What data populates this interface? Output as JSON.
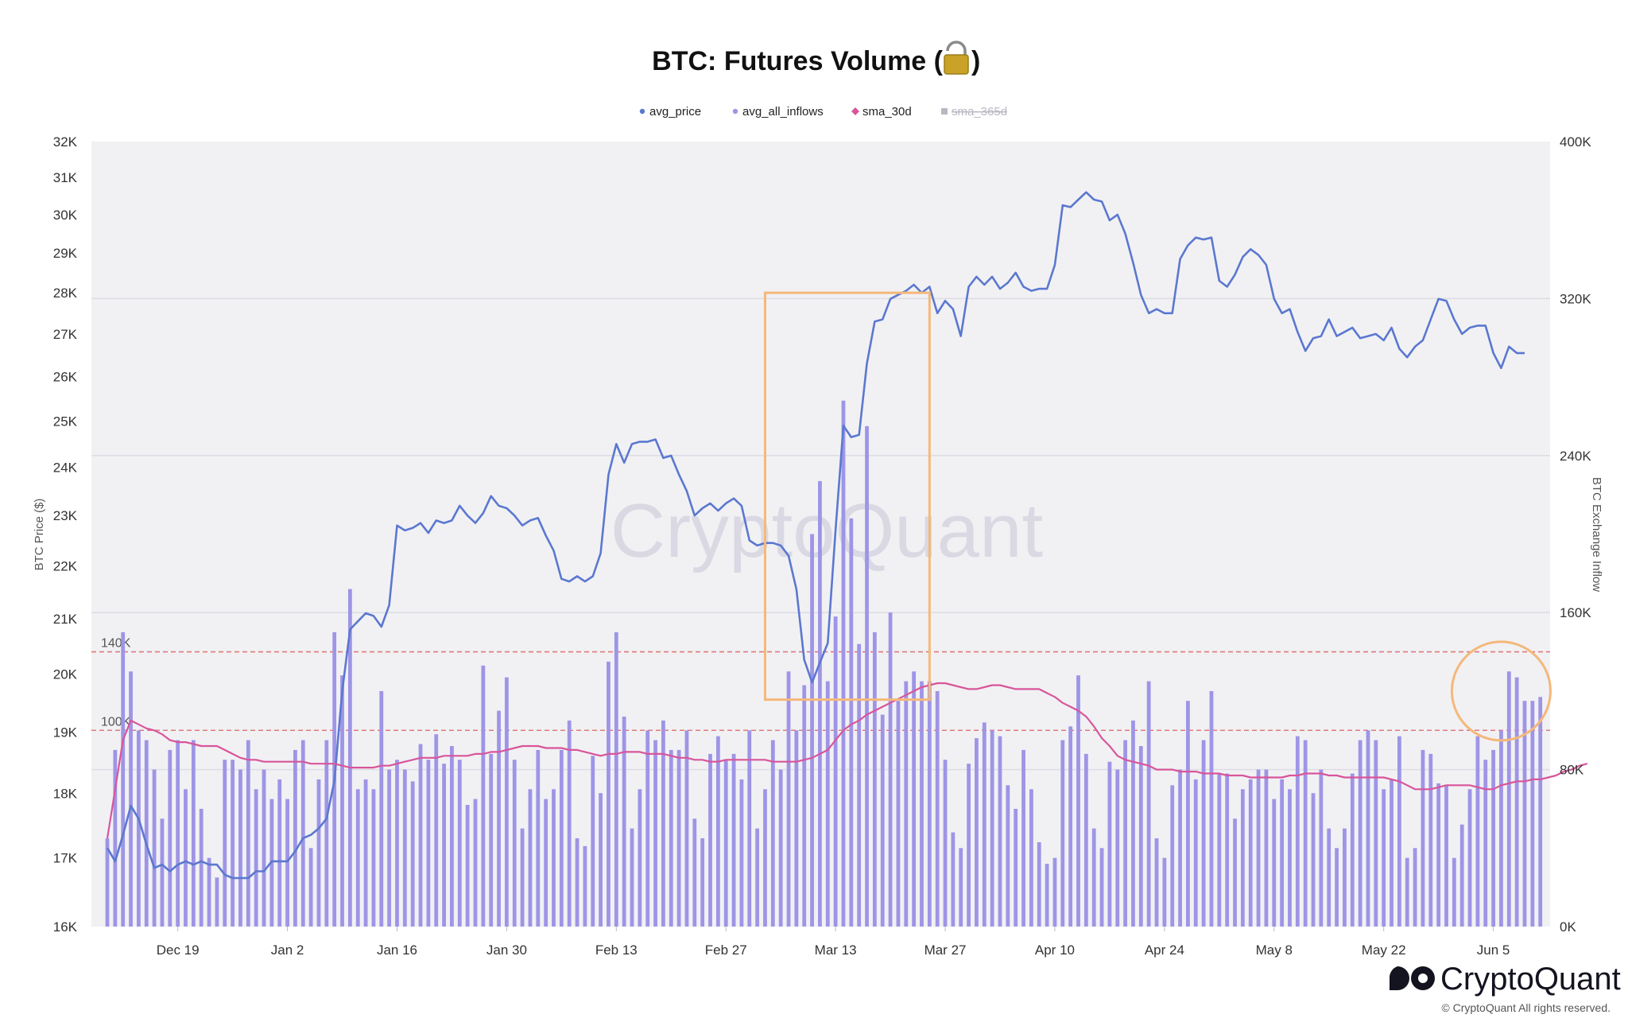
{
  "chart_data": {
    "type": "bar+line",
    "title": "BTC: Futures Volume (",
    "title_suffix": ")",
    "title_icon": "lock-icon",
    "legend": [
      {
        "name": "avg_price",
        "color": "#5b78cf",
        "marker": "circle",
        "enabled": true
      },
      {
        "name": "avg_all_inflows",
        "color": "#9e95e6",
        "marker": "circle",
        "enabled": true
      },
      {
        "name": "sma_30d",
        "color": "#d9559a",
        "marker": "diamond",
        "enabled": true
      },
      {
        "name": "sma_365d",
        "color": "#b8b8c4",
        "marker": "square",
        "enabled": false
      }
    ],
    "y_left": {
      "label": "BTC Price ($)",
      "ticks": [
        16000,
        17000,
        18000,
        19000,
        20000,
        21000,
        22000,
        23000,
        24000,
        25000,
        26000,
        27000,
        28000,
        29000,
        30000,
        31000,
        32000
      ],
      "tick_labels": [
        "16K",
        "17K",
        "18K",
        "19K",
        "20K",
        "21K",
        "22K",
        "23K",
        "24K",
        "25K",
        "26K",
        "27K",
        "28K",
        "29K",
        "30K",
        "31K",
        "32K"
      ],
      "scale": "log",
      "range": [
        16000,
        32000
      ]
    },
    "y_right": {
      "label": "BTC Exchange Inflow",
      "ticks": [
        0,
        80000,
        160000,
        240000,
        320000,
        400000
      ],
      "tick_labels": [
        "0K",
        "80K",
        "160K",
        "240K",
        "320K",
        "400K"
      ],
      "range": [
        0,
        400000
      ]
    },
    "x_axis": {
      "ticks": [
        "Dec 19",
        "Jan 2",
        "Jan 16",
        "Jan 30",
        "Feb 13",
        "Feb 27",
        "Mar 13",
        "Mar 27",
        "Apr 10",
        "Apr 24",
        "May 8",
        "May 22",
        "Jun 5"
      ],
      "start_date": "2022-12-10",
      "end_date": "2023-06-09"
    },
    "reference_lines": [
      {
        "label": "140K",
        "value": 140000,
        "color": "#e07a7a"
      },
      {
        "label": "100K",
        "value": 100000,
        "color": "#e07a7a"
      }
    ],
    "highlights": [
      {
        "kind": "rectangle",
        "from": "2023-03-04",
        "to": "2023-03-25",
        "y_top": 28000,
        "y_bottom": 19550,
        "color": "#f4b87a"
      },
      {
        "kind": "circle",
        "center": "2023-06-06",
        "value": 120000,
        "color": "#f4b87a"
      }
    ],
    "series": [
      {
        "name": "avg_price",
        "axis": "left",
        "color": "#5b78cf",
        "values": [
          17150,
          16950,
          17350,
          17800,
          17600,
          17200,
          16850,
          16900,
          16800,
          16900,
          16950,
          16900,
          16950,
          16900,
          16900,
          16750,
          16700,
          16700,
          16700,
          16800,
          16800,
          16950,
          16950,
          16950,
          17100,
          17300,
          17350,
          17450,
          17600,
          18200,
          19700,
          20800,
          20950,
          21100,
          21050,
          20850,
          21250,
          22800,
          22700,
          22750,
          22850,
          22650,
          22900,
          22850,
          22900,
          23200,
          23000,
          22850,
          23050,
          23400,
          23200,
          23150,
          23000,
          22800,
          22900,
          22950,
          22600,
          22300,
          21750,
          21700,
          21800,
          21700,
          21800,
          22250,
          23850,
          24500,
          24100,
          24500,
          24550,
          24550,
          24600,
          24200,
          24250,
          23850,
          23500,
          23000,
          23150,
          23250,
          23100,
          23250,
          23350,
          23200,
          22500,
          22400,
          22450,
          22450,
          22400,
          22200,
          21550,
          20250,
          19850,
          20200,
          20550,
          22700,
          24900,
          24650,
          24700,
          26300,
          27300,
          27350,
          27850,
          27950,
          28050,
          28200,
          28000,
          28150,
          27500,
          27800,
          27600,
          26950,
          28150,
          28400,
          28200,
          28400,
          28100,
          28250,
          28500,
          28150,
          28050,
          28100,
          28100,
          28700,
          30250,
          30200,
          30400,
          30600,
          30400,
          30350,
          29850,
          30000,
          29500,
          28750,
          27950,
          27500,
          27600,
          27500,
          27500,
          28850,
          29200,
          29400,
          29350,
          29400,
          28300,
          28150,
          28450,
          28900,
          29100,
          28950,
          28700,
          27850,
          27500,
          27600,
          27050,
          26600,
          26900,
          26950,
          27350,
          26950,
          27050,
          27150,
          26900,
          26950,
          27000,
          26850,
          27150,
          26650,
          26450,
          26700,
          26850,
          27350,
          27850,
          27800,
          27350,
          27000,
          27150,
          27200,
          27200,
          26550,
          26200,
          26700,
          26550,
          26550
        ]
      },
      {
        "name": "avg_all_inflows",
        "axis": "right",
        "color": "#9e95e6",
        "values": [
          45000,
          90000,
          150000,
          130000,
          100000,
          95000,
          80000,
          55000,
          90000,
          95000,
          70000,
          95000,
          60000,
          35000,
          25000,
          85000,
          85000,
          80000,
          95000,
          70000,
          80000,
          65000,
          75000,
          65000,
          90000,
          95000,
          40000,
          75000,
          95000,
          150000,
          128000,
          172000,
          70000,
          75000,
          70000,
          120000,
          80000,
          85000,
          80000,
          74000,
          93000,
          85000,
          98000,
          83000,
          92000,
          85000,
          62000,
          65000,
          133000,
          88000,
          110000,
          127000,
          85000,
          50000,
          70000,
          90000,
          65000,
          70000,
          90000,
          105000,
          45000,
          41000,
          87000,
          68000,
          135000,
          150000,
          107000,
          50000,
          70000,
          100000,
          95000,
          105000,
          90000,
          90000,
          100000,
          55000,
          45000,
          88000,
          97000,
          85000,
          88000,
          75000,
          100000,
          50000,
          70000,
          95000,
          80000,
          130000,
          100000,
          123000,
          200000,
          227000,
          125000,
          158000,
          268000,
          208000,
          144000,
          255000,
          150000,
          108000,
          160000,
          115000,
          125000,
          130000,
          125000,
          125000,
          120000,
          85000,
          48000,
          40000,
          83000,
          96000,
          104000,
          100000,
          97000,
          72000,
          60000,
          90000,
          70000,
          43000,
          32000,
          35000,
          95000,
          102000,
          128000,
          88000,
          50000,
          40000,
          84000,
          80000,
          95000,
          105000,
          92000,
          125000,
          45000,
          35000,
          72000,
          80000,
          115000,
          75000,
          95000,
          120000,
          78000,
          78000,
          55000,
          70000,
          75000,
          80000,
          80000,
          65000,
          75000,
          70000,
          97000,
          95000,
          68000,
          80000,
          50000,
          40000,
          50000,
          78000,
          95000,
          100000,
          95000,
          70000,
          75000,
          97000,
          35000,
          40000,
          90000,
          88000,
          73000,
          72000,
          35000,
          52000,
          70000,
          97000,
          85000,
          90000,
          100000,
          130000,
          127000,
          115000,
          115000,
          117000
        ]
      },
      {
        "name": "sma_30d",
        "axis": "right",
        "color": "#d9559a",
        "values": [
          45000,
          70000,
          95000,
          105000,
          103000,
          101000,
          100000,
          98000,
          95000,
          94000,
          94000,
          93000,
          92000,
          92000,
          92000,
          90000,
          88000,
          86000,
          85000,
          85000,
          84000,
          84000,
          84000,
          84000,
          84000,
          84000,
          83000,
          83000,
          83000,
          83000,
          82000,
          81000,
          81000,
          81000,
          81000,
          82000,
          82000,
          83000,
          84000,
          85000,
          86000,
          86000,
          86000,
          87000,
          87000,
          87000,
          87000,
          88000,
          88000,
          89000,
          89000,
          90000,
          91000,
          92000,
          92000,
          92000,
          91000,
          91000,
          91000,
          90000,
          90000,
          89000,
          88000,
          87000,
          88000,
          88000,
          89000,
          89000,
          89000,
          88000,
          88000,
          88000,
          87000,
          86000,
          86000,
          85000,
          85000,
          84000,
          84000,
          85000,
          85000,
          85000,
          85000,
          85000,
          85000,
          84000,
          84000,
          84000,
          84000,
          85000,
          86000,
          88000,
          90000,
          95000,
          100000,
          103000,
          105000,
          108000,
          110000,
          112000,
          114000,
          116000,
          118000,
          120000,
          122000,
          123000,
          124000,
          124000,
          123000,
          122000,
          121000,
          121000,
          122000,
          123000,
          123000,
          122000,
          121000,
          121000,
          121000,
          121000,
          119000,
          117000,
          114000,
          112000,
          110000,
          107000,
          102000,
          96000,
          92000,
          87000,
          85000,
          84000,
          83000,
          82000,
          80000,
          80000,
          80000,
          79000,
          79000,
          79000,
          78000,
          78000,
          78000,
          77000,
          77000,
          77000,
          76000,
          76000,
          76000,
          76000,
          76000,
          77000,
          77000,
          78000,
          78000,
          78000,
          77000,
          77000,
          76000,
          76000,
          76000,
          76000,
          76000,
          76000,
          75000,
          74000,
          72000,
          70000,
          70000,
          70000,
          71000,
          72000,
          72000,
          72000,
          72000,
          71000,
          70000,
          70000,
          72000,
          73000,
          74000,
          74000,
          75000,
          75000,
          76000,
          77000,
          79000,
          80000,
          82000,
          83000
        ]
      }
    ]
  },
  "watermark": "CryptoQuant",
  "brand": "CryptoQuant",
  "copyright": "© CryptoQuant All rights reserved."
}
